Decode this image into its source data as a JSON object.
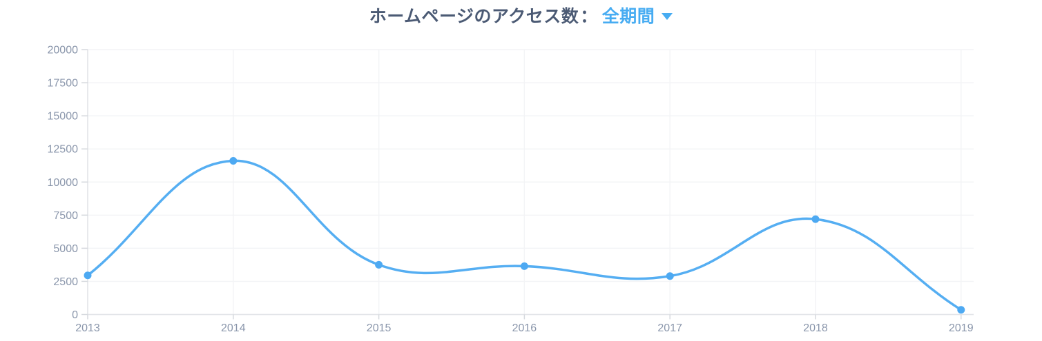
{
  "header": {
    "title": "ホームページのアクセス数",
    "separator": "：",
    "range_label": "全期間",
    "caret_icon": "caret-down",
    "title_color": "#4b5a74",
    "accent_color": "#47acf2"
  },
  "chart_data": {
    "type": "line",
    "title": "ホームページのアクセス数： 全期間",
    "categories": [
      "2013",
      "2014",
      "2015",
      "2016",
      "2017",
      "2018",
      "2019"
    ],
    "values": [
      2950,
      11600,
      3750,
      3650,
      2900,
      7200,
      350
    ],
    "xlabel": "",
    "ylabel": "",
    "ylim": [
      0,
      20000
    ],
    "ytick_step": 2500,
    "ytick_labels": [
      "0",
      "2500",
      "5000",
      "7500",
      "10000",
      "12500",
      "15000",
      "17500",
      "20000"
    ],
    "grid": true,
    "legend_position": "none",
    "curve_tension": 0.4,
    "colors": {
      "line": "#55aef2",
      "point": "#4da9f2",
      "grid": "#f3f4f6",
      "axis": "#e2e4e8",
      "tick_mark": "#d6d9de",
      "tick_label": "#8a96ab"
    }
  }
}
